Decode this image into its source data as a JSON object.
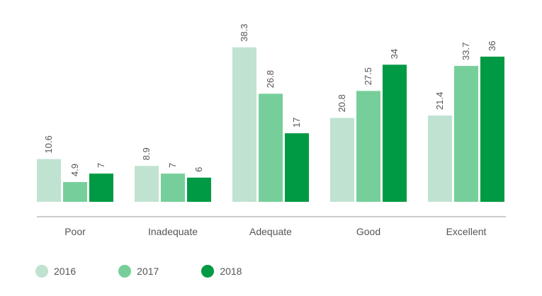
{
  "chart_data": {
    "type": "bar",
    "title": "",
    "xlabel": "",
    "ylabel": "",
    "ylim": [
      0,
      40
    ],
    "grid": false,
    "legend": "bottom-left",
    "categories": [
      "Poor",
      "Inadequate",
      "Adequate",
      "Good",
      "Excellent"
    ],
    "series": [
      {
        "name": "2016",
        "color": "#bfe3d0",
        "values": [
          10.6,
          8.9,
          38.3,
          20.8,
          21.4
        ]
      },
      {
        "name": "2017",
        "color": "#76cf9a",
        "values": [
          4.9,
          7,
          26.8,
          27.5,
          33.7
        ]
      },
      {
        "name": "2018",
        "color": "#009a44",
        "values": [
          7,
          6,
          17,
          34,
          36
        ]
      }
    ]
  }
}
